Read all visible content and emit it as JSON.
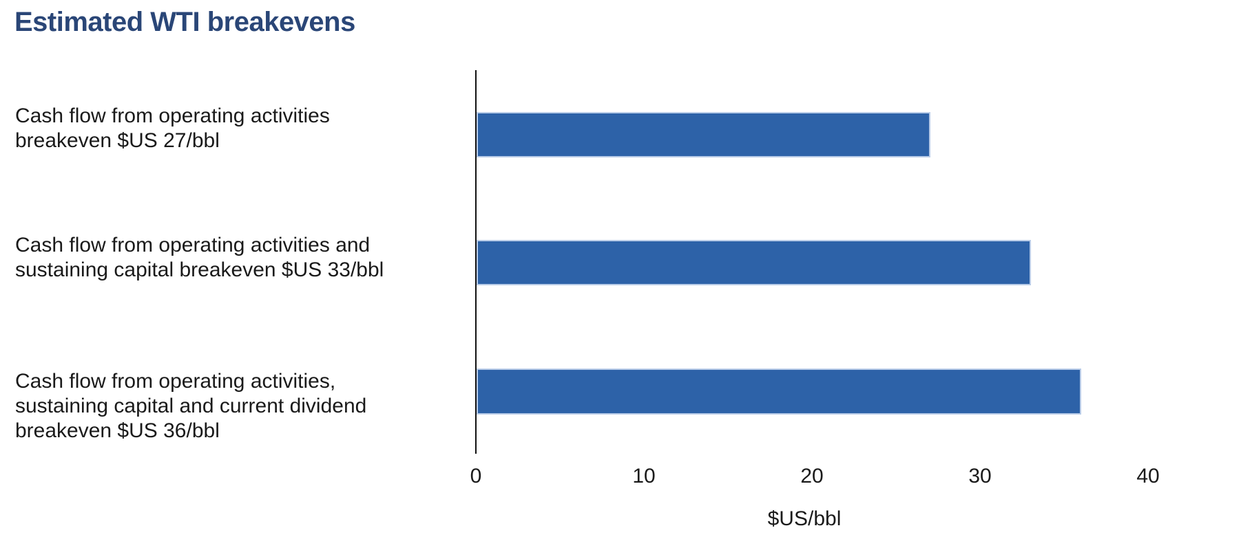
{
  "title": {
    "text": "Estimated WTI breakevens",
    "color": "#2A4677"
  },
  "chart_data": {
    "type": "bar",
    "orientation": "horizontal",
    "title": "Estimated WTI breakevens",
    "categories": [
      "Cash flow from operating activities\nbreakeven $US 27/bbl",
      "Cash flow from operating activities and\nsustaining capital breakeven $US 33/bbl",
      "Cash flow from operating activities,\nsustaining capital and current dividend\nbreakeven $US 36/bbl"
    ],
    "values": [
      27,
      33,
      36
    ],
    "xlabel": "$US/bbl",
    "ylabel": "",
    "xticks": [
      0,
      10,
      20,
      30,
      40
    ],
    "xlim": [
      0,
      40
    ],
    "grid": false,
    "legend_position": "none",
    "bar_color": "#2D62A8",
    "bar_border_color": "#B9CCE8",
    "axis_line_color": "#111111",
    "text_color": "#1A1A1A"
  }
}
